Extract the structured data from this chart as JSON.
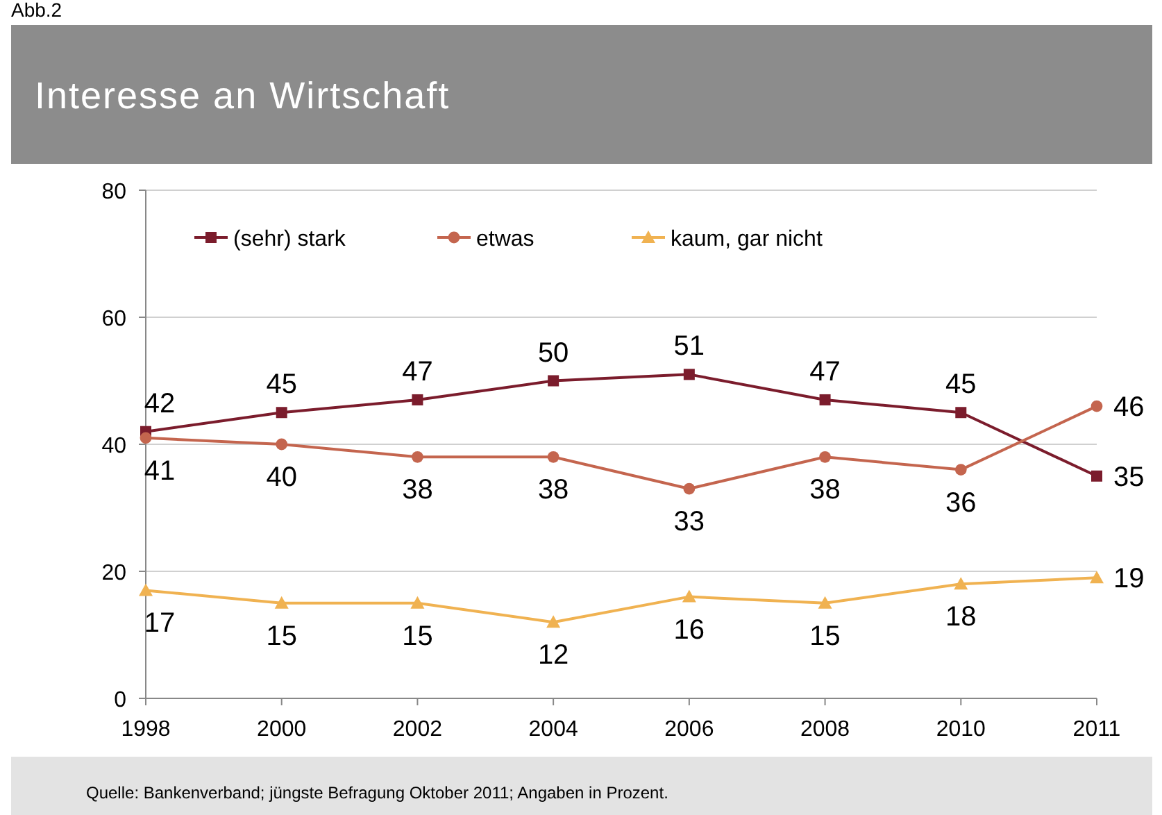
{
  "chart_data": {
    "type": "line",
    "title": "Interesse an Wirtschaft",
    "categories": [
      "1998",
      "2000",
      "2002",
      "2004",
      "2006",
      "2008",
      "2010",
      "2011"
    ],
    "series": [
      {
        "name": "(sehr) stark",
        "color": "#7b1c2c",
        "marker": "square",
        "values": [
          42,
          45,
          47,
          50,
          51,
          47,
          45,
          35
        ]
      },
      {
        "name": "etwas",
        "color": "#c4654e",
        "marker": "circle",
        "values": [
          41,
          40,
          38,
          38,
          33,
          38,
          36,
          46
        ]
      },
      {
        "name": "kaum, gar nicht",
        "color": "#f0b251",
        "marker": "triangle",
        "values": [
          17,
          15,
          15,
          12,
          16,
          15,
          18,
          19
        ]
      }
    ],
    "ylim": [
      0,
      80
    ],
    "yticks": [
      0,
      20,
      40,
      60,
      80
    ],
    "grid": "y",
    "legend": "top left",
    "data_labels": true,
    "annotations": [
      "Abb.2",
      "Quelle: Bankenverband; jüngste Befragung Oktober 2011; Angaben in Prozent."
    ]
  }
}
